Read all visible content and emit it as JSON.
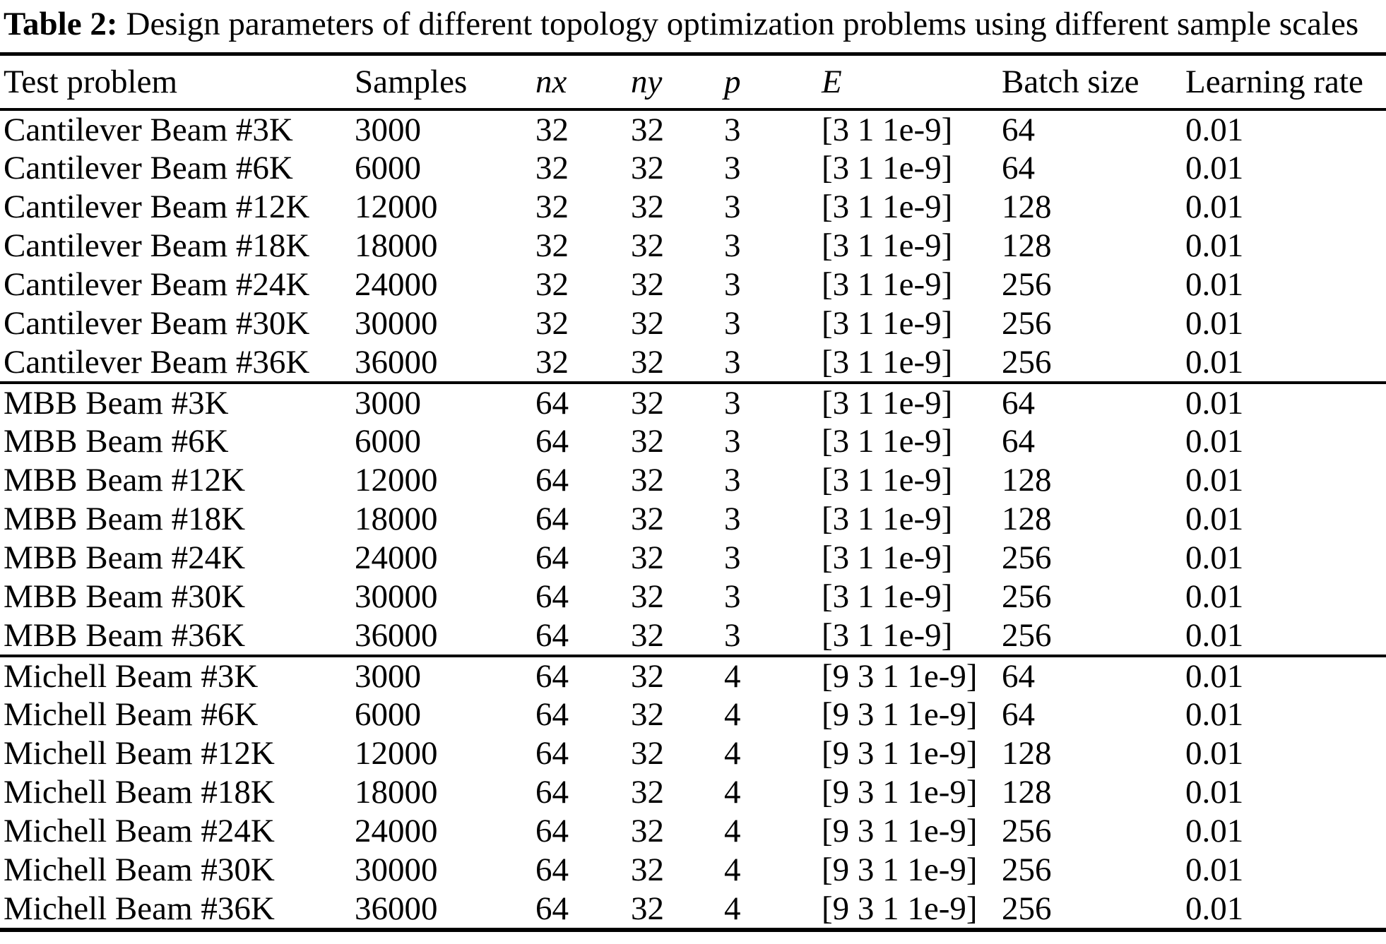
{
  "title": {
    "label": "Table 2:",
    "text": "Design parameters of different topology optimization problems using different sample scales"
  },
  "table": {
    "columns": [
      "Test problem",
      "Samples",
      "nx",
      "ny",
      "p",
      "E",
      "Batch size",
      "Learning rate"
    ],
    "groups": [
      {
        "rows": [
          [
            "Cantilever Beam #3K",
            "3000",
            "32",
            "32",
            "3",
            "[3 1 1e-9]",
            "64",
            "0.01"
          ],
          [
            "Cantilever Beam #6K",
            "6000",
            "32",
            "32",
            "3",
            "[3 1 1e-9]",
            "64",
            "0.01"
          ],
          [
            "Cantilever Beam #12K",
            "12000",
            "32",
            "32",
            "3",
            "[3 1 1e-9]",
            "128",
            "0.01"
          ],
          [
            "Cantilever Beam #18K",
            "18000",
            "32",
            "32",
            "3",
            "[3 1 1e-9]",
            "128",
            "0.01"
          ],
          [
            "Cantilever Beam #24K",
            "24000",
            "32",
            "32",
            "3",
            "[3 1 1e-9]",
            "256",
            "0.01"
          ],
          [
            "Cantilever Beam #30K",
            "30000",
            "32",
            "32",
            "3",
            "[3 1 1e-9]",
            "256",
            "0.01"
          ],
          [
            "Cantilever Beam #36K",
            "36000",
            "32",
            "32",
            "3",
            "[3 1 1e-9]",
            "256",
            "0.01"
          ]
        ]
      },
      {
        "rows": [
          [
            "MBB Beam #3K",
            "3000",
            "64",
            "32",
            "3",
            "[3 1 1e-9]",
            "64",
            "0.01"
          ],
          [
            "MBB Beam #6K",
            "6000",
            "64",
            "32",
            "3",
            "[3 1 1e-9]",
            "64",
            "0.01"
          ],
          [
            "MBB Beam #12K",
            "12000",
            "64",
            "32",
            "3",
            "[3 1 1e-9]",
            "128",
            "0.01"
          ],
          [
            "MBB Beam #18K",
            "18000",
            "64",
            "32",
            "3",
            "[3 1 1e-9]",
            "128",
            "0.01"
          ],
          [
            "MBB Beam #24K",
            "24000",
            "64",
            "32",
            "3",
            "[3 1 1e-9]",
            "256",
            "0.01"
          ],
          [
            "MBB Beam #30K",
            "30000",
            "64",
            "32",
            "3",
            "[3 1 1e-9]",
            "256",
            "0.01"
          ],
          [
            "MBB Beam #36K",
            "36000",
            "64",
            "32",
            "3",
            "[3 1 1e-9]",
            "256",
            "0.01"
          ]
        ]
      },
      {
        "rows": [
          [
            "Michell Beam #3K",
            "3000",
            "64",
            "32",
            "4",
            "[9 3 1 1e-9]",
            "64",
            "0.01"
          ],
          [
            "Michell Beam #6K",
            "6000",
            "64",
            "32",
            "4",
            "[9 3 1 1e-9]",
            "64",
            "0.01"
          ],
          [
            "Michell Beam #12K",
            "12000",
            "64",
            "32",
            "4",
            "[9 3 1 1e-9]",
            "128",
            "0.01"
          ],
          [
            "Michell Beam #18K",
            "18000",
            "64",
            "32",
            "4",
            "[9 3 1 1e-9]",
            "128",
            "0.01"
          ],
          [
            "Michell Beam #24K",
            "24000",
            "64",
            "32",
            "4",
            "[9 3 1 1e-9]",
            "256",
            "0.01"
          ],
          [
            "Michell Beam #30K",
            "30000",
            "64",
            "32",
            "4",
            "[9 3 1 1e-9]",
            "256",
            "0.01"
          ],
          [
            "Michell Beam #36K",
            "36000",
            "64",
            "32",
            "4",
            "[9 3 1 1e-9]",
            "256",
            "0.01"
          ]
        ]
      }
    ]
  }
}
